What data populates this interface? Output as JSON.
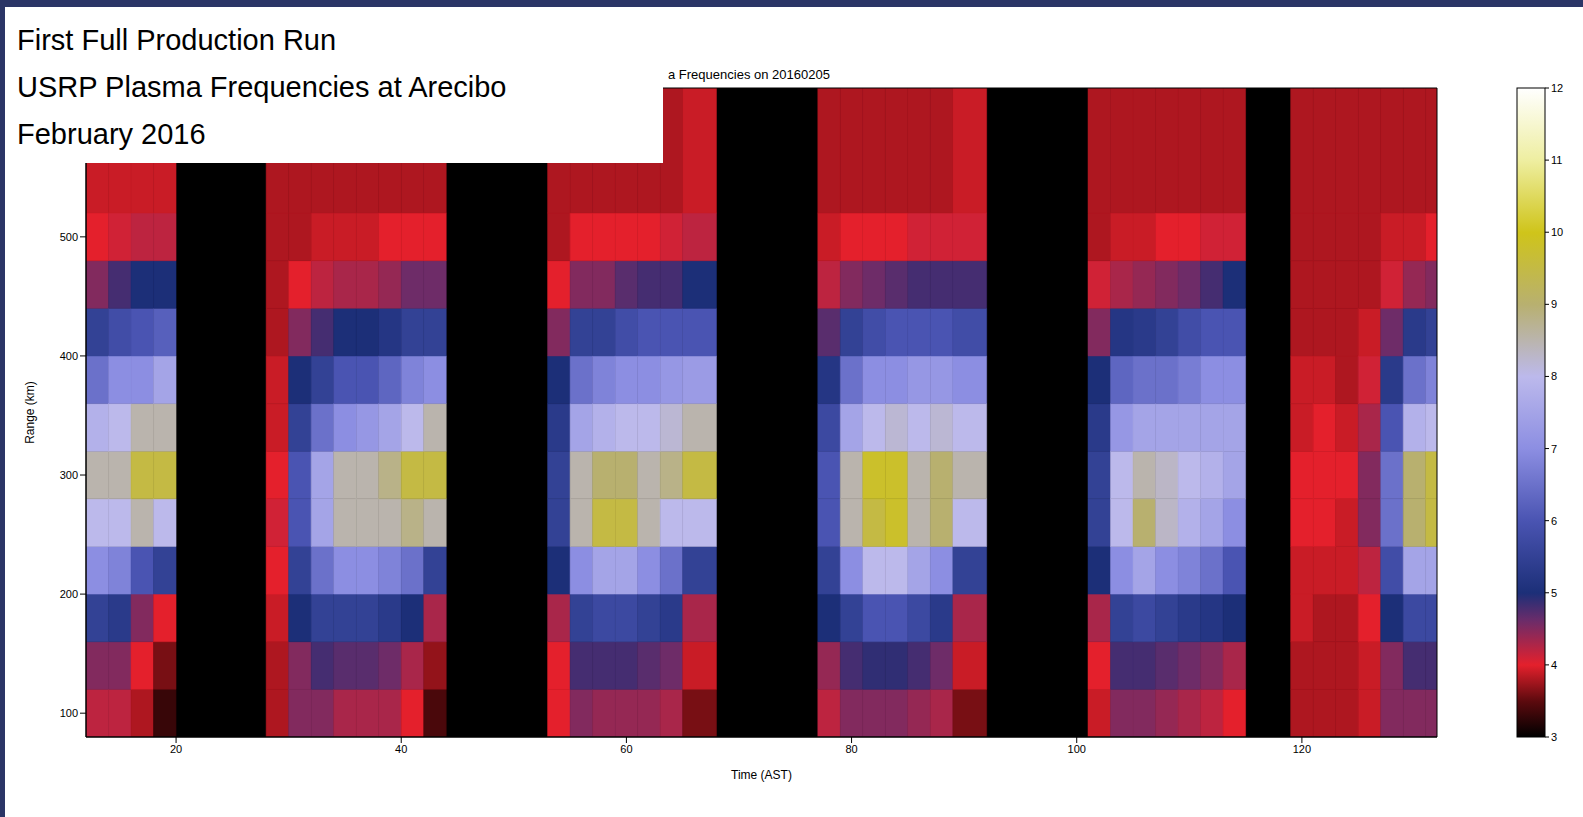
{
  "chart_data": {
    "type": "heatmap",
    "title": "a Frequencies on 20160205",
    "x_label": "Time (AST)",
    "y_label": "Range (km)",
    "annotations": [
      "First Full Production Run",
      "USRP Plasma Frequencies at Arecibo",
      "February 2016"
    ],
    "xlim": [
      12,
      132
    ],
    "xticks": [
      20,
      40,
      60,
      80,
      100,
      120
    ],
    "ylim": [
      80,
      625
    ],
    "yticks": [
      100,
      200,
      300,
      400,
      500
    ],
    "x_edges": [
      12,
      14,
      16,
      18,
      20,
      28,
      30,
      32,
      34,
      36,
      38,
      40,
      42,
      44,
      53,
      55,
      57,
      59,
      61,
      63,
      65,
      68,
      77,
      79,
      81,
      83,
      85,
      87,
      89,
      92,
      101,
      103,
      105,
      107,
      109,
      111,
      113,
      115,
      119,
      121,
      123,
      125,
      127,
      129,
      131,
      132
    ],
    "y_edges": [
      80,
      120,
      160,
      200,
      240,
      280,
      320,
      360,
      400,
      440,
      480,
      520,
      625
    ],
    "values": [
      [
        4.2,
        4.5,
        5.5,
        7,
        8,
        8.5,
        7.8,
        6.5,
        5.5,
        4.5,
        4,
        3.9
      ],
      [
        4.2,
        4.5,
        5.3,
        6.8,
        8,
        8.5,
        8,
        7,
        5.8,
        4.8,
        4.1,
        3.9
      ],
      [
        3.8,
        4,
        4.5,
        6,
        8.5,
        9.5,
        8.5,
        7,
        6,
        5,
        4.2,
        3.9
      ],
      [
        3.3,
        3.6,
        4,
        5.5,
        8,
        9.5,
        8.5,
        7.5,
        6.2,
        5,
        4.2,
        3.9
      ],
      null,
      [
        3.8,
        3.8,
        3.9,
        4,
        4.1,
        4,
        3.9,
        3.9,
        3.8,
        3.8,
        3.8,
        3.8
      ],
      [
        4.5,
        4.5,
        5,
        5.5,
        6,
        6,
        5.5,
        5,
        4.5,
        4,
        3.8,
        3.8
      ],
      [
        4.5,
        4.8,
        5.5,
        6.5,
        7.5,
        7.5,
        6.5,
        5.5,
        4.8,
        4.2,
        3.9,
        3.8
      ],
      [
        4.3,
        4.7,
        5.5,
        7,
        8.5,
        8.5,
        7,
        6,
        5,
        4.3,
        3.9,
        3.8
      ],
      [
        4.3,
        4.7,
        5.5,
        7,
        8.5,
        8.5,
        7.2,
        6,
        5,
        4.3,
        3.9,
        3.8
      ],
      [
        4.3,
        4.6,
        5.3,
        6.8,
        8.5,
        8.8,
        7.5,
        6.3,
        5.2,
        4.4,
        4,
        3.8
      ],
      [
        4,
        4.3,
        5,
        6.5,
        8.8,
        9.5,
        8,
        6.8,
        5.5,
        4.6,
        4,
        3.8
      ],
      [
        3.4,
        3.7,
        4.3,
        5.5,
        8.5,
        9.5,
        8.5,
        7,
        5.5,
        4.6,
        4,
        3.8
      ],
      null,
      [
        4,
        4,
        4.3,
        5,
        5.5,
        5.5,
        5.3,
        5,
        4.5,
        4,
        3.8,
        3.8
      ],
      [
        4.5,
        4.8,
        5.5,
        7,
        8.5,
        8.5,
        7.5,
        6.5,
        5.5,
        4.5,
        4,
        3.8
      ],
      [
        4.4,
        4.8,
        5.7,
        7.5,
        9.5,
        9,
        7.8,
        6.8,
        5.5,
        4.5,
        4,
        3.8
      ],
      [
        4.4,
        4.8,
        5.7,
        7.5,
        9.5,
        9,
        8,
        7,
        5.8,
        4.7,
        4,
        3.8
      ],
      [
        4.4,
        4.7,
        5.5,
        7,
        8.5,
        8.5,
        8,
        7,
        6,
        4.8,
        4,
        3.8
      ],
      [
        4.3,
        4.6,
        5.3,
        6.5,
        8,
        8.8,
        8.2,
        7.2,
        6,
        4.8,
        4.1,
        3.8
      ],
      [
        3.6,
        3.9,
        4.3,
        5.5,
        8,
        9.5,
        8.5,
        7.3,
        6,
        5,
        4.2,
        3.9
      ],
      null,
      [
        4.2,
        4.4,
        5,
        5.5,
        6,
        6,
        5.7,
        5.2,
        4.7,
        4.2,
        3.9,
        3.8
      ],
      [
        4.5,
        4.8,
        5.5,
        7,
        8.5,
        8.5,
        7.5,
        6.5,
        5.5,
        4.5,
        4,
        3.8
      ],
      [
        4.5,
        4.9,
        6,
        8,
        9.5,
        9.8,
        8,
        7,
        5.8,
        4.6,
        4,
        3.8
      ],
      [
        4.5,
        4.9,
        6,
        8,
        9.8,
        9.8,
        8.2,
        7,
        6,
        4.7,
        4,
        3.8
      ],
      [
        4.4,
        4.8,
        5.7,
        7.5,
        8.5,
        8.5,
        8,
        7.2,
        6,
        4.8,
        4.1,
        3.8
      ],
      [
        4.3,
        4.6,
        5.3,
        7,
        9,
        9,
        8.2,
        7.2,
        6,
        4.8,
        4.1,
        3.8
      ],
      [
        3.6,
        3.9,
        4.3,
        5.5,
        8,
        8.5,
        8,
        7,
        5.8,
        4.8,
        4.1,
        3.9
      ],
      null,
      [
        3.9,
        4,
        4.3,
        5,
        5.5,
        5.5,
        5.3,
        5,
        4.5,
        4.1,
        3.8,
        3.8
      ],
      [
        4.5,
        4.8,
        5.5,
        7,
        8,
        8,
        7.2,
        6.3,
        5.2,
        4.3,
        3.9,
        3.8
      ],
      [
        4.5,
        4.8,
        5.7,
        7.5,
        9,
        8.5,
        7.5,
        6.5,
        5.3,
        4.4,
        3.9,
        3.8
      ],
      [
        4.4,
        4.7,
        5.5,
        7,
        8.3,
        8.3,
        7.5,
        6.5,
        5.5,
        4.5,
        4,
        3.8
      ],
      [
        4.3,
        4.6,
        5.3,
        6.8,
        7.8,
        8,
        7.5,
        6.7,
        5.8,
        4.6,
        4,
        3.8
      ],
      [
        4.2,
        4.5,
        5.2,
        6.5,
        7.5,
        7.8,
        7.5,
        7,
        6,
        4.8,
        4.1,
        3.8
      ],
      [
        4,
        4.3,
        5,
        6,
        7,
        7.5,
        7.5,
        7,
        6,
        5,
        4.1,
        3.8
      ],
      null,
      [
        3.8,
        3.8,
        3.9,
        3.9,
        4,
        4,
        3.9,
        3.9,
        3.8,
        3.8,
        3.8,
        3.8
      ],
      [
        3.8,
        3.8,
        3.8,
        3.9,
        4,
        4,
        4,
        3.9,
        3.8,
        3.8,
        3.8,
        3.8
      ],
      [
        3.8,
        3.8,
        3.8,
        3.9,
        3.9,
        4,
        3.9,
        3.8,
        3.8,
        3.8,
        3.8,
        3.8
      ],
      [
        3.9,
        3.9,
        4,
        4.2,
        4.5,
        4.5,
        4.3,
        4.1,
        3.9,
        3.8,
        3.8,
        3.8
      ],
      [
        4.5,
        4.5,
        5,
        5.8,
        6.5,
        6.5,
        6,
        5.3,
        4.6,
        4.1,
        3.9,
        3.8
      ],
      [
        4.5,
        4.8,
        5.7,
        7.5,
        9,
        9,
        7.8,
        6.5,
        5.3,
        4.4,
        3.9,
        3.8
      ],
      [
        4.5,
        4.8,
        5.7,
        7.5,
        9.5,
        9.5,
        8,
        6.8,
        5.5,
        4.5,
        4,
        3.8
      ]
    ],
    "colorbar_range": [
      3,
      12
    ],
    "colorbar_ticks": [
      3,
      4,
      5,
      6,
      7,
      8,
      9,
      10,
      11,
      12
    ]
  }
}
